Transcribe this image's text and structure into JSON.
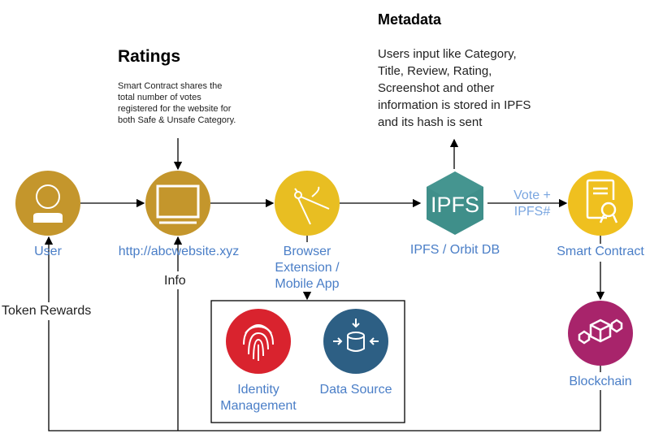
{
  "ratings": {
    "title": "Ratings",
    "text": "Smart Contract shares the total number of votes registered for the website for both Safe & Unsafe Category."
  },
  "metadata": {
    "title": "Metadata",
    "text": "Users input like Category, Title, Review, Rating, Screenshot and other information is stored in IPFS and its hash is sent"
  },
  "nodes": {
    "user": {
      "label": "User",
      "icon": "user-icon",
      "color": "#C4962C"
    },
    "website": {
      "label": "http://abcwebsite.xyz",
      "icon": "monitor-icon",
      "color": "#C4962C"
    },
    "browser": {
      "label": "Browser Extension / Mobile App",
      "icon": "compass-icon",
      "color": "#E8BE22"
    },
    "ipfs": {
      "label": "IPFS / Orbit DB",
      "icon_text": "IPFS",
      "color": "#3F8F8A"
    },
    "contract": {
      "label": "Smart Contract",
      "icon": "certificate-icon",
      "color": "#EFC01F"
    },
    "blockchain": {
      "label": "Blockchain",
      "icon": "blockchain-icon",
      "color": "#A8246B"
    },
    "identity": {
      "label": "Identity Management",
      "icon": "fingerprint-icon",
      "color": "#D9232E"
    },
    "datasource": {
      "label": "Data Source",
      "icon": "database-icon",
      "color": "#2D5F84"
    }
  },
  "edges": {
    "vote": "Vote + IPFS#",
    "info": "Info",
    "rewards": "Token Rewards"
  }
}
